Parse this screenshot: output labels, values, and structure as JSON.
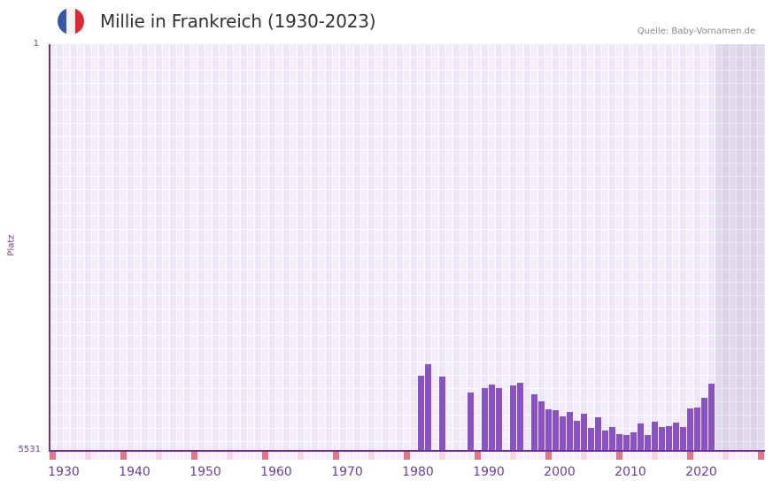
{
  "header": {
    "title": "Millie in Frankreich (1930-2023)",
    "source": "Quelle: Baby-Vornamen.de",
    "flag_colors": [
      "#3558a7",
      "#f2f2f2",
      "#e8252e"
    ]
  },
  "colors": {
    "bar": "#8b52c6",
    "axis": "#6b2fa0",
    "decade_marker": "#e57380",
    "half_decade_marker": "#f5d6de"
  },
  "chart_data": {
    "type": "bar",
    "title": "Millie in Frankreich (1930-2023)",
    "xlabel": "",
    "ylabel": "Platz",
    "y_inverted": true,
    "ylim": [
      5531,
      1
    ],
    "y_ticks": [
      "1",
      "5531"
    ],
    "x_ticks": [
      "1930",
      "1940",
      "1950",
      "1960",
      "1970",
      "1980",
      "1990",
      "2000",
      "2010",
      "2020"
    ],
    "x_range": [
      1929,
      2029
    ],
    "shaded_future_from": 2023,
    "grid": true,
    "legend": null,
    "source": "Quelle: Baby-Vornamen.de",
    "x": [
      1981,
      1982,
      1984,
      1988,
      1990,
      1991,
      1992,
      1994,
      1995,
      1997,
      1998,
      1999,
      2000,
      2001,
      2002,
      2003,
      2004,
      2005,
      2006,
      2007,
      2008,
      2009,
      2010,
      2011,
      2012,
      2013,
      2014,
      2015,
      2016,
      2017,
      2018,
      2019,
      2020,
      2021,
      2022
    ],
    "values": [
      4509,
      4353,
      4521,
      4737,
      4677,
      4629,
      4677,
      4641,
      4605,
      4761,
      4857,
      4965,
      4977,
      5061,
      5001,
      5121,
      5025,
      5218,
      5073,
      5254,
      5206,
      5302,
      5314,
      5278,
      5158,
      5314,
      5134,
      5206,
      5194,
      5146,
      5206,
      4954,
      4942,
      4809,
      4617
    ]
  },
  "axis": {
    "y_top_label": "1",
    "y_bottom_label": "5531",
    "y_title": "Platz"
  }
}
